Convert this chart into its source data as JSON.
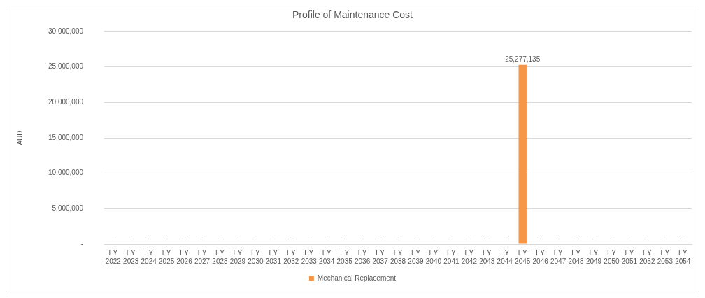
{
  "chart_data": {
    "type": "bar",
    "title": "Profile of Maintenance Cost",
    "ylabel": "AUD",
    "categories": [
      "FY 2022",
      "FY 2023",
      "FY 2024",
      "FY 2025",
      "FY 2026",
      "FY 2027",
      "FY 2028",
      "FY 2029",
      "FY 2030",
      "FY 2031",
      "FY 2032",
      "FY 2033",
      "FY 2034",
      "FY 2035",
      "FY 2036",
      "FY 2037",
      "FY 2038",
      "FY 2039",
      "FY 2040",
      "FY 2041",
      "FY 2042",
      "FY 2043",
      "FY 2044",
      "FY 2045",
      "FY 2046",
      "FY 2047",
      "FY 2048",
      "FY 2049",
      "FY 2050",
      "FY 2051",
      "FY 2052",
      "FY 2053",
      "FY 2054"
    ],
    "series": [
      {
        "name": "Mechanical Replacement",
        "color": "#f79646",
        "values": [
          0,
          0,
          0,
          0,
          0,
          0,
          0,
          0,
          0,
          0,
          0,
          0,
          0,
          0,
          0,
          0,
          0,
          0,
          0,
          0,
          0,
          0,
          0,
          25277135,
          0,
          0,
          0,
          0,
          0,
          0,
          0,
          0,
          0
        ],
        "value_labels": [
          "-",
          "-",
          "-",
          "-",
          "-",
          "-",
          "-",
          "-",
          "-",
          "-",
          "-",
          "-",
          "-",
          "-",
          "-",
          "-",
          "-",
          "-",
          "-",
          "-",
          "-",
          "-",
          "-",
          "25,277,135",
          "-",
          "-",
          "-",
          "-",
          "-",
          "-",
          "-",
          "-",
          "-"
        ]
      }
    ],
    "ylim": [
      0,
      30000000
    ],
    "yticks": [
      {
        "value": 0,
        "label": "-"
      },
      {
        "value": 5000000,
        "label": "5,000,000"
      },
      {
        "value": 10000000,
        "label": "10,000,000"
      },
      {
        "value": 15000000,
        "label": "15,000,000"
      },
      {
        "value": 20000000,
        "label": "20,000,000"
      },
      {
        "value": 25000000,
        "label": "25,000,000"
      },
      {
        "value": 30000000,
        "label": "30,000,000"
      }
    ],
    "grid": "y",
    "legend": "bottom"
  }
}
